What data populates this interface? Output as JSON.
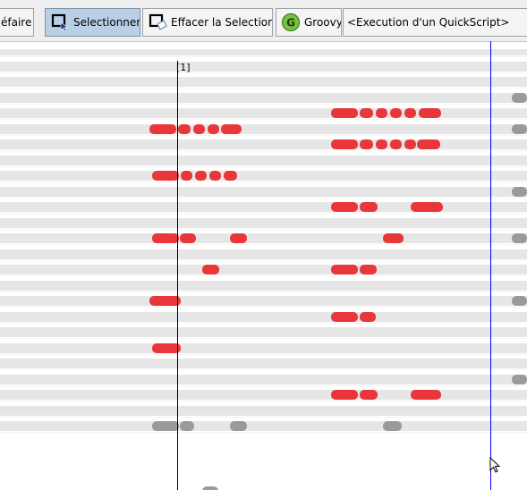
{
  "toolbar": {
    "undo_label": "éfaire",
    "select_label": "Selectionner",
    "clear_selection_label": "Effacer la Selection",
    "groovy_label": "Groovy",
    "quickscript_label": "<Execution d'un QuickScript>"
  },
  "timeline": {
    "marker_label": "[1]"
  },
  "colors": {
    "note_active": "#e8363a",
    "note_muted": "#9a9a9a",
    "lane": "#e6e6e6",
    "end_marker": "#0000ff"
  },
  "lanes": [
    {
      "notes": []
    },
    {
      "notes": []
    },
    {
      "notes": []
    },
    {
      "notes": []
    },
    {
      "notes": []
    },
    {
      "notes": [
        [
          572,
          589,
          "muted"
        ]
      ]
    },
    {
      "notes": [
        [
          370,
          400,
          "active"
        ],
        [
          402,
          417,
          "active"
        ],
        [
          420,
          433,
          "active"
        ],
        [
          436,
          449,
          "active"
        ],
        [
          452,
          465,
          "active"
        ],
        [
          468,
          493,
          "active"
        ]
      ]
    },
    {
      "notes": [
        [
          167,
          197,
          "active"
        ],
        [
          199,
          213,
          "active"
        ],
        [
          216,
          229,
          "active"
        ],
        [
          232,
          245,
          "active"
        ],
        [
          247,
          270,
          "active"
        ],
        [
          572,
          589,
          "muted"
        ]
      ]
    },
    {
      "notes": [
        [
          370,
          400,
          "active"
        ],
        [
          402,
          417,
          "active"
        ],
        [
          420,
          433,
          "active"
        ],
        [
          436,
          449,
          "active"
        ],
        [
          452,
          465,
          "active"
        ],
        [
          466,
          492,
          "active"
        ]
      ]
    },
    {
      "notes": []
    },
    {
      "notes": [
        [
          170,
          200,
          "active"
        ],
        [
          202,
          215,
          "active"
        ],
        [
          218,
          231,
          "active"
        ],
        [
          234,
          247,
          "active"
        ],
        [
          250,
          265,
          "active"
        ]
      ]
    },
    {
      "notes": [
        [
          572,
          589,
          "muted"
        ]
      ]
    },
    {
      "notes": [
        [
          370,
          400,
          "active"
        ],
        [
          402,
          422,
          "active"
        ],
        [
          459,
          495,
          "active"
        ]
      ]
    },
    {
      "notes": []
    },
    {
      "notes": [
        [
          170,
          200,
          "active"
        ],
        [
          201,
          219,
          "active"
        ],
        [
          257,
          276,
          "active"
        ],
        [
          428,
          451,
          "active"
        ],
        [
          572,
          589,
          "muted"
        ]
      ]
    },
    {
      "notes": []
    },
    {
      "notes": [
        [
          226,
          245,
          "active"
        ],
        [
          370,
          400,
          "active"
        ],
        [
          402,
          421,
          "active"
        ]
      ]
    },
    {
      "notes": []
    },
    {
      "notes": [
        [
          167,
          202,
          "active"
        ],
        [
          572,
          589,
          "muted"
        ]
      ]
    },
    {
      "notes": [
        [
          370,
          400,
          "active"
        ],
        [
          402,
          420,
          "active"
        ]
      ]
    },
    {
      "notes": []
    },
    {
      "notes": [
        [
          170,
          202,
          "active"
        ]
      ]
    },
    {
      "notes": []
    },
    {
      "notes": [
        [
          572,
          589,
          "muted"
        ]
      ]
    },
    {
      "notes": [
        [
          370,
          400,
          "active"
        ],
        [
          402,
          422,
          "active"
        ],
        [
          459,
          493,
          "active"
        ]
      ]
    },
    {
      "notes": []
    },
    {
      "notes": [
        [
          170,
          200,
          "muted"
        ],
        [
          201,
          217,
          "muted"
        ],
        [
          257,
          276,
          "muted"
        ],
        [
          428,
          449,
          "muted"
        ]
      ]
    }
  ]
}
